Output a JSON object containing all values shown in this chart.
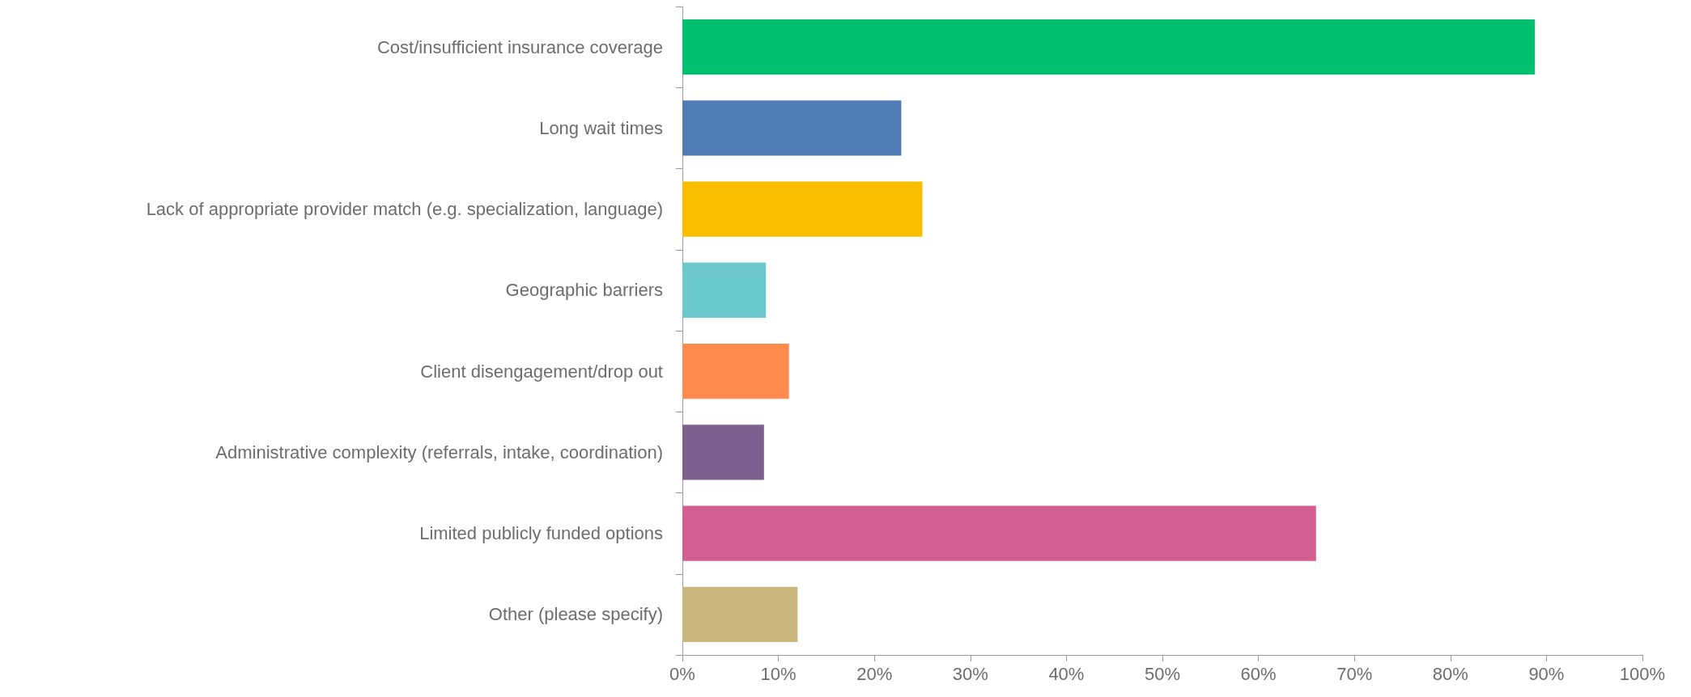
{
  "chart_data": {
    "type": "bar",
    "orientation": "horizontal",
    "categories": [
      "Cost/insufficient insurance coverage",
      "Long wait times",
      "Lack of appropriate provider match (e.g. specialization, language)",
      "Geographic barriers",
      "Client disengagement/drop out",
      "Administrative complexity (referrals, intake, coordination)",
      "Limited publicly funded options",
      "Other (please specify)"
    ],
    "values": [
      88.8,
      22.8,
      25.0,
      8.7,
      11.1,
      8.5,
      66.0,
      12.0
    ],
    "colors": [
      "#00bf6f",
      "#507cb6",
      "#f9be00",
      "#6bc8cd",
      "#ff8b4f",
      "#7f5f90",
      "#d25f90",
      "#c9b77d"
    ],
    "xlim": [
      0,
      100
    ],
    "xticks": [
      {
        "value": 0,
        "label": "0%"
      },
      {
        "value": 10,
        "label": "10%"
      },
      {
        "value": 20,
        "label": "20%"
      },
      {
        "value": 30,
        "label": "30%"
      },
      {
        "value": 40,
        "label": "40%"
      },
      {
        "value": 50,
        "label": "50%"
      },
      {
        "value": 60,
        "label": "60%"
      },
      {
        "value": 70,
        "label": "70%"
      },
      {
        "value": 80,
        "label": "80%"
      },
      {
        "value": 90,
        "label": "90%"
      },
      {
        "value": 100,
        "label": "100%"
      }
    ],
    "grid": false
  }
}
